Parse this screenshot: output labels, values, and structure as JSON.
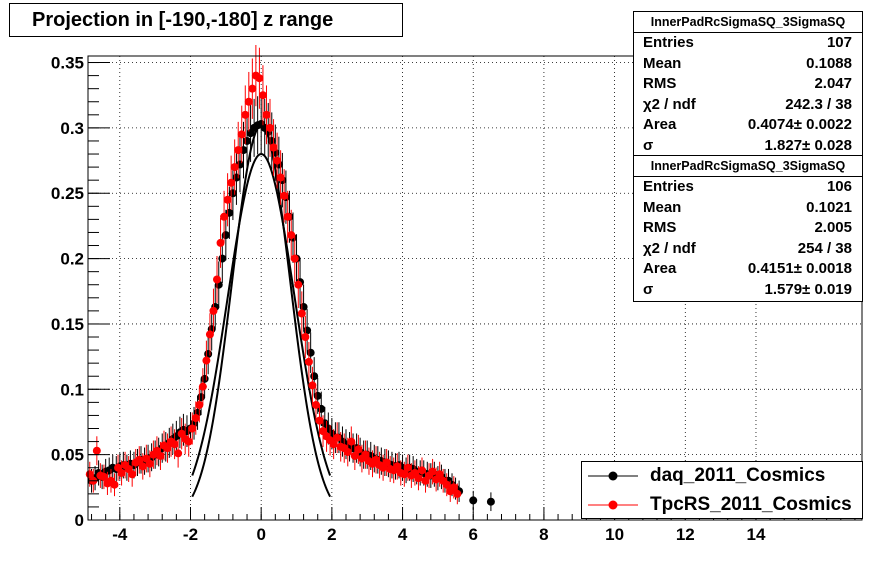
{
  "title": "Projection in [-190,-180] z range",
  "stats": [
    {
      "name": "InnerPadRcSigmaSQ_3SigmaSQ",
      "rows": [
        {
          "label": "Entries",
          "value": "107"
        },
        {
          "label": "Mean",
          "value": "0.1088"
        },
        {
          "label": "RMS",
          "value": "2.047"
        },
        {
          "label": "χ2 / ndf",
          "value": "242.3 / 38"
        },
        {
          "label": "Area",
          "value": "0.4074± 0.0022"
        },
        {
          "label": "σ",
          "value": "1.827± 0.028"
        }
      ]
    },
    {
      "name": "InnerPadRcSigmaSQ_3SigmaSQ",
      "rows": [
        {
          "label": "Entries",
          "value": "106"
        },
        {
          "label": "Mean",
          "value": "0.1021"
        },
        {
          "label": "RMS",
          "value": "2.005"
        },
        {
          "label": "χ2 / ndf",
          "value": "254 / 38"
        },
        {
          "label": "Area",
          "value": "0.4151± 0.0018"
        },
        {
          "label": "σ",
          "value": "1.579± 0.019"
        }
      ]
    }
  ],
  "legend": [
    {
      "name": "daq_2011_Cosmics",
      "color": "#000000"
    },
    {
      "name": "TpcRS_2011_Cosmics",
      "color": "#ff0000"
    }
  ],
  "chart_data": {
    "type": "scatter",
    "title": "Projection in [-190,-180] z range",
    "xlim": [
      -4.9,
      17
    ],
    "ylim": [
      0,
      0.355
    ],
    "grid": true,
    "legend_position": "bottom-right",
    "xticks": [
      "-4",
      "-2",
      "0",
      "2",
      "4",
      "6",
      "8",
      "10",
      "12",
      "14"
    ],
    "xtick_values": [
      -4,
      -2,
      0,
      2,
      4,
      6,
      8,
      10,
      12,
      14
    ],
    "yticks": [
      "0",
      "0.05",
      "0.1",
      "0.15",
      "0.2",
      "0.25",
      "0.3",
      "0.35"
    ],
    "ytick_values": [
      0,
      0.05,
      0.1,
      0.15,
      0.2,
      0.25,
      0.3,
      0.35
    ],
    "series": [
      {
        "name": "daq_2011_Cosmics",
        "color": "#000000",
        "x": [
          -4.8,
          -4.7,
          -4.6,
          -4.5,
          -4.4,
          -4.3,
          -4.2,
          -4.1,
          -4.0,
          -3.9,
          -3.8,
          -3.7,
          -3.6,
          -3.5,
          -3.4,
          -3.3,
          -3.2,
          -3.1,
          -3.0,
          -2.9,
          -2.8,
          -2.7,
          -2.6,
          -2.5,
          -2.4,
          -2.3,
          -2.2,
          -2.1,
          -2.0,
          -1.9,
          -1.8,
          -1.7,
          -1.6,
          -1.5,
          -1.4,
          -1.3,
          -1.2,
          -1.1,
          -1.0,
          -0.9,
          -0.8,
          -0.7,
          -0.6,
          -0.5,
          -0.4,
          -0.3,
          -0.2,
          -0.1,
          0.0,
          0.1,
          0.2,
          0.3,
          0.4,
          0.5,
          0.6,
          0.7,
          0.8,
          0.9,
          1.0,
          1.1,
          1.2,
          1.3,
          1.4,
          1.5,
          1.6,
          1.7,
          1.8,
          1.9,
          2.0,
          2.1,
          2.2,
          2.3,
          2.4,
          2.5,
          2.6,
          2.7,
          2.8,
          2.9,
          3.0,
          3.1,
          3.2,
          3.3,
          3.4,
          3.5,
          3.6,
          3.7,
          3.8,
          3.9,
          4.0,
          4.1,
          4.2,
          4.3,
          4.4,
          4.5,
          4.6,
          4.7,
          4.8,
          4.9,
          5.0,
          5.1,
          5.2,
          5.3,
          5.4,
          5.5,
          5.6,
          6.0,
          6.5
        ],
        "y": [
          0.03,
          0.032,
          0.036,
          0.033,
          0.037,
          0.038,
          0.04,
          0.039,
          0.041,
          0.042,
          0.04,
          0.043,
          0.042,
          0.044,
          0.046,
          0.045,
          0.047,
          0.048,
          0.05,
          0.052,
          0.055,
          0.056,
          0.059,
          0.062,
          0.064,
          0.067,
          0.069,
          0.068,
          0.07,
          0.074,
          0.082,
          0.094,
          0.108,
          0.127,
          0.146,
          0.163,
          0.18,
          0.2,
          0.218,
          0.235,
          0.25,
          0.262,
          0.272,
          0.283,
          0.29,
          0.296,
          0.3,
          0.302,
          0.303,
          0.3,
          0.297,
          0.29,
          0.281,
          0.272,
          0.26,
          0.247,
          0.232,
          0.216,
          0.2,
          0.182,
          0.163,
          0.145,
          0.128,
          0.11,
          0.095,
          0.085,
          0.074,
          0.07,
          0.066,
          0.063,
          0.063,
          0.06,
          0.058,
          0.056,
          0.055,
          0.055,
          0.052,
          0.05,
          0.05,
          0.049,
          0.047,
          0.046,
          0.045,
          0.044,
          0.043,
          0.042,
          0.041,
          0.042,
          0.04,
          0.038,
          0.04,
          0.039,
          0.037,
          0.036,
          0.036,
          0.035,
          0.034,
          0.035,
          0.032,
          0.033,
          0.03,
          0.03,
          0.027,
          0.024,
          0.022,
          0.015,
          0.014
        ]
      },
      {
        "name": "TpcRS_2011_Cosmics",
        "color": "#ff0000",
        "x": [
          -4.85,
          -4.75,
          -4.65,
          -4.55,
          -4.45,
          -4.35,
          -4.25,
          -4.15,
          -4.05,
          -3.95,
          -3.85,
          -3.75,
          -3.65,
          -3.55,
          -3.45,
          -3.35,
          -3.25,
          -3.15,
          -3.05,
          -2.95,
          -2.85,
          -2.75,
          -2.65,
          -2.55,
          -2.45,
          -2.35,
          -2.25,
          -2.15,
          -2.05,
          -1.95,
          -1.85,
          -1.75,
          -1.65,
          -1.55,
          -1.45,
          -1.35,
          -1.25,
          -1.15,
          -1.05,
          -0.95,
          -0.85,
          -0.75,
          -0.65,
          -0.55,
          -0.45,
          -0.35,
          -0.25,
          -0.15,
          -0.05,
          0.05,
          0.15,
          0.25,
          0.35,
          0.45,
          0.55,
          0.65,
          0.75,
          0.85,
          0.95,
          1.05,
          1.15,
          1.25,
          1.35,
          1.45,
          1.55,
          1.65,
          1.75,
          1.85,
          1.95,
          2.05,
          2.15,
          2.25,
          2.35,
          2.45,
          2.55,
          2.65,
          2.75,
          2.85,
          2.95,
          3.05,
          3.15,
          3.25,
          3.35,
          3.45,
          3.55,
          3.65,
          3.75,
          3.85,
          3.95,
          4.05,
          4.15,
          4.25,
          4.35,
          4.45,
          4.55,
          4.65,
          4.75,
          4.85,
          4.95,
          5.05,
          5.15,
          5.25,
          5.35,
          5.45,
          5.55
        ],
        "y": [
          0.035,
          0.03,
          0.053,
          0.034,
          0.033,
          0.028,
          0.03,
          0.027,
          0.04,
          0.036,
          0.042,
          0.039,
          0.035,
          0.044,
          0.046,
          0.041,
          0.047,
          0.043,
          0.05,
          0.053,
          0.049,
          0.057,
          0.055,
          0.06,
          0.058,
          0.051,
          0.066,
          0.062,
          0.06,
          0.07,
          0.078,
          0.088,
          0.102,
          0.122,
          0.142,
          0.16,
          0.184,
          0.212,
          0.232,
          0.245,
          0.258,
          0.27,
          0.283,
          0.295,
          0.31,
          0.32,
          0.33,
          0.34,
          0.338,
          0.325,
          0.31,
          0.3,
          0.285,
          0.275,
          0.262,
          0.248,
          0.232,
          0.218,
          0.2,
          0.18,
          0.158,
          0.14,
          0.121,
          0.103,
          0.088,
          0.076,
          0.068,
          0.064,
          0.061,
          0.058,
          0.063,
          0.056,
          0.055,
          0.052,
          0.06,
          0.049,
          0.054,
          0.047,
          0.05,
          0.045,
          0.043,
          0.046,
          0.042,
          0.04,
          0.044,
          0.039,
          0.038,
          0.041,
          0.036,
          0.035,
          0.04,
          0.034,
          0.036,
          0.032,
          0.038,
          0.03,
          0.034,
          0.037,
          0.031,
          0.035,
          0.03,
          0.027,
          0.022,
          0.025,
          0.02
        ]
      }
    ],
    "fits": [
      {
        "name": "daq_2011_Cosmics",
        "color": "#000000",
        "amplitude": 0.302,
        "mean": 0.0,
        "sigma": 0.82,
        "range": [
          -1.95,
          1.95
        ]
      },
      {
        "name": "TpcRS_2011_Cosmics",
        "color": "#000000",
        "amplitude": 0.28,
        "mean": 0.0,
        "sigma": 0.95,
        "range": [
          -1.95,
          1.95
        ]
      }
    ]
  }
}
